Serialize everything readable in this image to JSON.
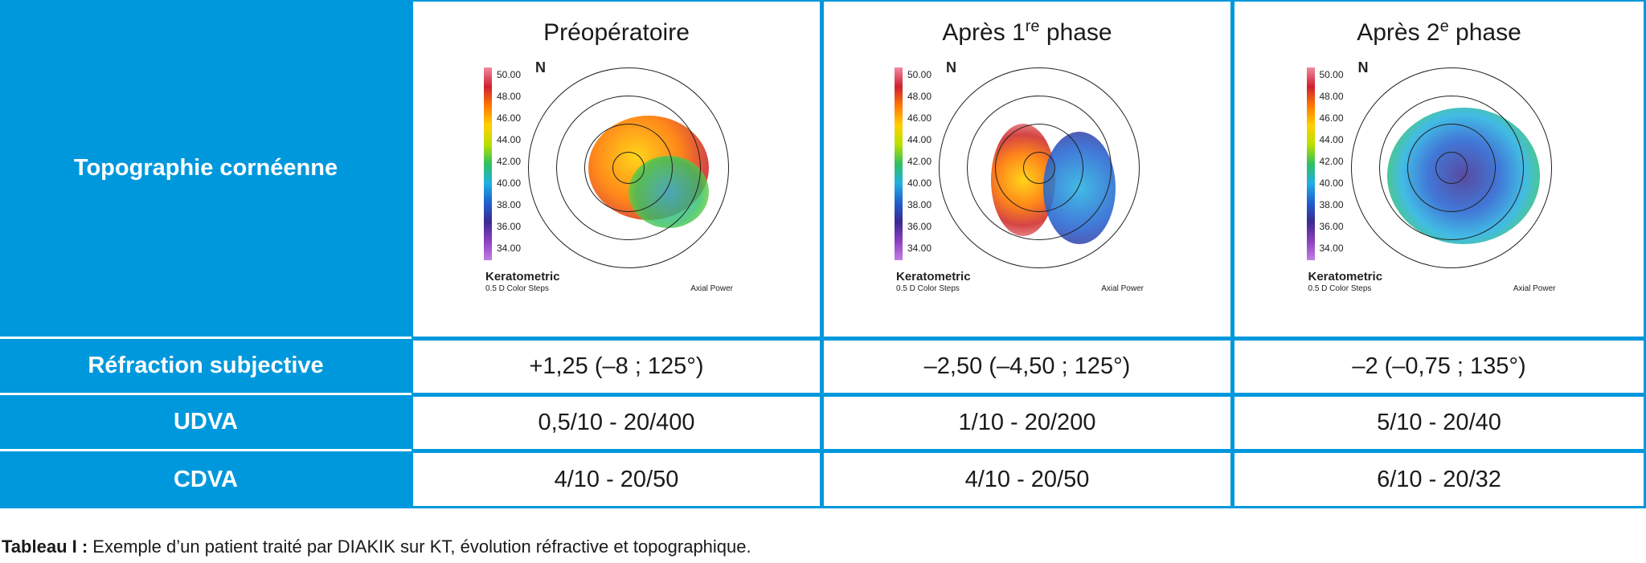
{
  "columns": [
    {
      "title": "Préopératoire",
      "sup": "",
      "suffix": ""
    },
    {
      "title": "Après 1",
      "sup": "re",
      "suffix": " phase"
    },
    {
      "title": "Après 2",
      "sup": "e",
      "suffix": " phase"
    }
  ],
  "rows": {
    "topo_label": "Topographie cornéenne",
    "refraction_label": "Réfraction subjective",
    "udva_label": "UDVA",
    "cdva_label": "CDVA",
    "refraction": [
      "+1,25 (–8 ; 125°)",
      "–2,50 (–4,50 ; 125°)",
      "–2 (–0,75 ; 135°)"
    ],
    "udva": [
      "0,5/10 - 20/400",
      "1/10 - 20/200",
      "5/10 - 20/40"
    ],
    "cdva": [
      "4/10 - 20/50",
      "4/10 - 20/50",
      "6/10 - 20/32"
    ]
  },
  "map": {
    "scale": [
      "50.00",
      "48.00",
      "46.00",
      "44.00",
      "42.00",
      "40.00",
      "38.00",
      "36.00",
      "34.00"
    ],
    "keratometric": "Keratometric",
    "steps": "0.5 D Color Steps",
    "axial": "Axial Power",
    "n": "N"
  },
  "caption": {
    "bold": "Tableau I :",
    "text": " Exemple d’un patient traité par DIAKIK sur KT, évolution réfractive et topographique."
  },
  "colors": {
    "accent": "#0098dc"
  }
}
